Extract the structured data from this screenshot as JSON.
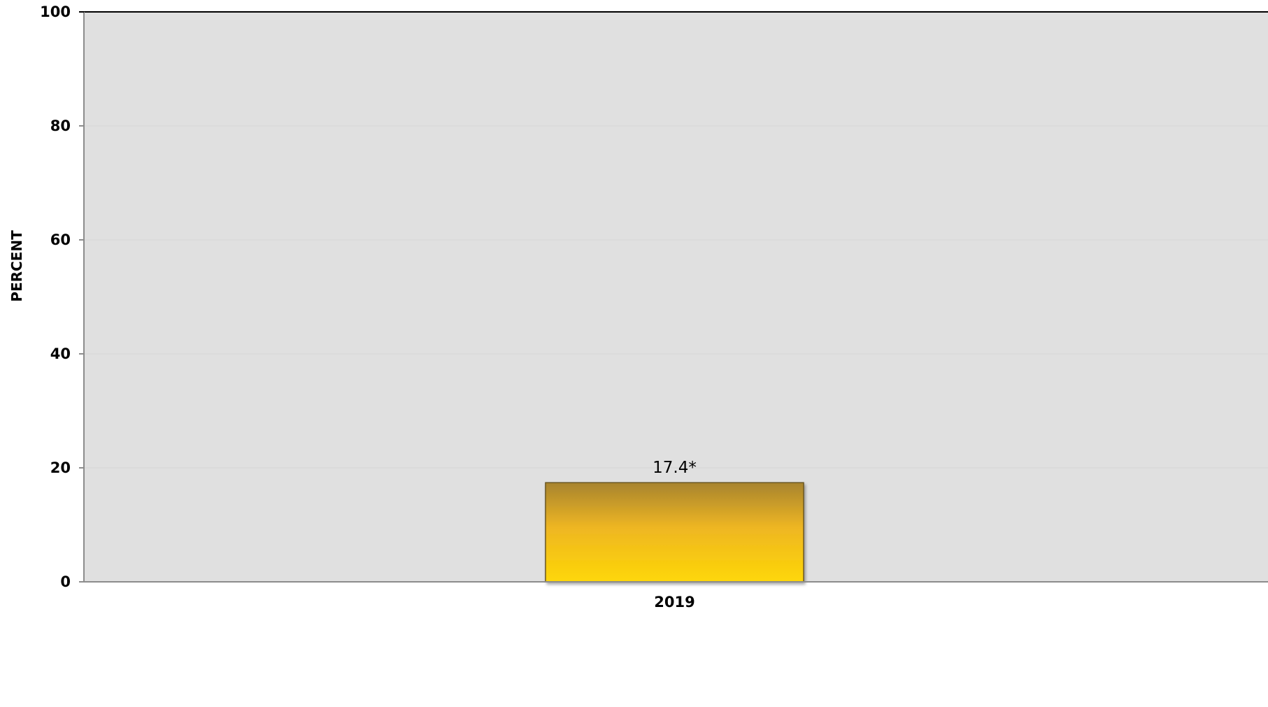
{
  "chart_data": {
    "type": "bar",
    "title": "",
    "xlabel": "",
    "ylabel": "PERCENT",
    "categories": [
      "2019"
    ],
    "values": [
      17.4
    ],
    "data_labels": [
      "17.4*"
    ],
    "ylim": [
      0,
      100
    ],
    "yticks": [
      0,
      20,
      40,
      60,
      80,
      100
    ],
    "grid": true,
    "legend": "none",
    "colors": {
      "plot_background": "#e0e0e0",
      "bar_top": "#a8842f",
      "bar_middle": "#eeb623",
      "bar_bottom": "#fed706",
      "bar_edge": "#6b5720",
      "axis": "#8c8c8c",
      "top_border": "#000000",
      "gridline": "#d6d6d6"
    }
  }
}
